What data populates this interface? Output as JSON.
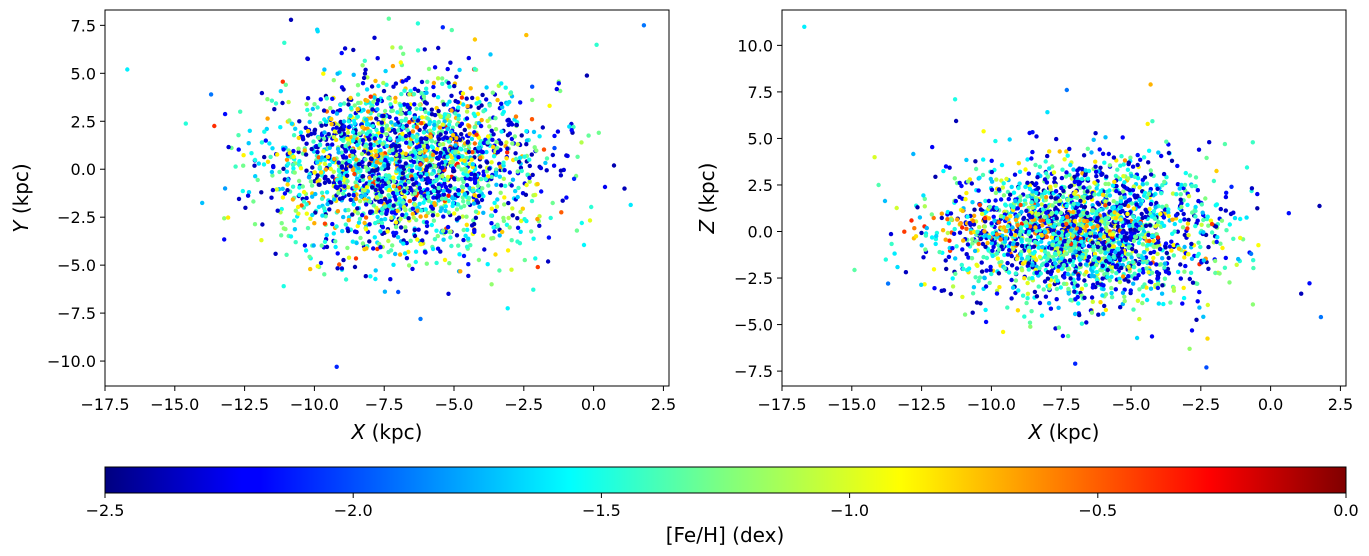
{
  "chart_data": [
    {
      "type": "scatter",
      "title": "",
      "xlabel_var": "X",
      "xlabel_unit": " (kpc)",
      "ylabel_var": "Y",
      "ylabel_unit": " (kpc)",
      "xlim": [
        -17.5,
        2.7
      ],
      "ylim": [
        -11.3,
        8.3
      ],
      "xticks": [
        -17.5,
        -15.0,
        -12.5,
        -10.0,
        -7.5,
        -5.0,
        -2.5,
        0.0,
        2.5
      ],
      "xtick_labels": [
        "−17.5",
        "−15.0",
        "−12.5",
        "−10.0",
        "−7.5",
        "−5.0",
        "−2.5",
        "0.0",
        "2.5"
      ],
      "yticks": [
        -10.0,
        -7.5,
        -5.0,
        -2.5,
        0.0,
        2.5,
        5.0,
        7.5
      ],
      "ytick_labels": [
        "−10.0",
        "−7.5",
        "−5.0",
        "−2.5",
        "0.0",
        "2.5",
        "5.0",
        "7.5"
      ],
      "points": [
        {
          "x": -16.7,
          "y": 5.2,
          "feh": -1.6
        },
        {
          "x": 1.8,
          "y": 7.5,
          "feh": -1.9
        },
        {
          "x": -13.7,
          "y": 3.9,
          "feh": -1.9
        },
        {
          "x": -9.2,
          "y": -10.3,
          "feh": -2.1
        },
        {
          "x": -6.2,
          "y": -7.8,
          "feh": -1.9
        },
        {
          "x": -5.4,
          "y": 7.4,
          "feh": -2.1
        },
        {
          "x": -8.9,
          "y": 6.3,
          "feh": -2.3
        },
        {
          "x": -2.0,
          "y": -5.1,
          "feh": -0.45
        },
        {
          "x": -0.6,
          "y": -3.2,
          "feh": -1.3
        },
        {
          "x": -0.7,
          "y": -0.5,
          "feh": -2.1
        },
        {
          "x": -1.4,
          "y": 1.1,
          "feh": -2.0
        },
        {
          "x": -2.2,
          "y": 4.3,
          "feh": -2.0
        },
        {
          "x": -7.0,
          "y": -6.4,
          "feh": -2.0
        },
        {
          "x": -11.1,
          "y": -6.1,
          "feh": -1.5
        },
        {
          "x": -13.2,
          "y": -1.0,
          "feh": -1.8
        }
      ],
      "cloud": {
        "cx": -6.8,
        "cy": 0.2,
        "sx": 2.4,
        "sy": 2.2,
        "count": 2400,
        "seed": 11
      }
    },
    {
      "type": "scatter",
      "title": "",
      "xlabel_var": "X",
      "xlabel_unit": " (kpc)",
      "ylabel_var": "Z",
      "ylabel_unit": " (kpc)",
      "xlim": [
        -17.5,
        2.7
      ],
      "ylim": [
        -8.3,
        11.9
      ],
      "xticks": [
        -17.5,
        -15.0,
        -12.5,
        -10.0,
        -7.5,
        -5.0,
        -2.5,
        0.0,
        2.5
      ],
      "xtick_labels": [
        "−17.5",
        "−15.0",
        "−12.5",
        "−10.0",
        "−7.5",
        "−5.0",
        "−2.5",
        "0.0",
        "2.5"
      ],
      "yticks": [
        -7.5,
        -5.0,
        -2.5,
        0.0,
        2.5,
        5.0,
        7.5,
        10.0
      ],
      "ytick_labels": [
        "−7.5",
        "−5.0",
        "−2.5",
        "0.0",
        "2.5",
        "5.0",
        "7.5",
        "10.0"
      ],
      "points": [
        {
          "x": -16.7,
          "y": 11.0,
          "feh": -1.6
        },
        {
          "x": -4.3,
          "y": 7.9,
          "feh": -0.75
        },
        {
          "x": 1.8,
          "y": -4.6,
          "feh": -1.9
        },
        {
          "x": -13.7,
          "y": -2.8,
          "feh": -1.9
        },
        {
          "x": -7.0,
          "y": -7.1,
          "feh": -2.1
        },
        {
          "x": -2.3,
          "y": -7.3,
          "feh": -2.0
        },
        {
          "x": -2.9,
          "y": -6.3,
          "feh": -1.2
        },
        {
          "x": -11.3,
          "y": 7.1,
          "feh": -1.5
        },
        {
          "x": -7.3,
          "y": 7.6,
          "feh": -1.9
        },
        {
          "x": -0.7,
          "y": -1.2,
          "feh": -1.9
        },
        {
          "x": -1.4,
          "y": 2.4,
          "feh": -2.1
        },
        {
          "x": -2.2,
          "y": 4.8,
          "feh": -2.3
        },
        {
          "x": -2.1,
          "y": 0.4,
          "feh": -0.45
        }
      ],
      "cloud": {
        "cx": -6.8,
        "cy": -0.1,
        "sx": 2.4,
        "sy": 1.9,
        "count": 2400,
        "seed": 23
      }
    }
  ],
  "colorbar": {
    "label": "[Fe/H] (dex)",
    "range": [
      -2.5,
      0.0
    ],
    "ticks": [
      -2.5,
      -2.0,
      -1.5,
      -1.0,
      -0.5,
      0.0
    ],
    "tick_labels": [
      "−2.5",
      "−2.0",
      "−1.5",
      "−1.0",
      "−0.5",
      "0.0"
    ],
    "colormap": "jet"
  }
}
